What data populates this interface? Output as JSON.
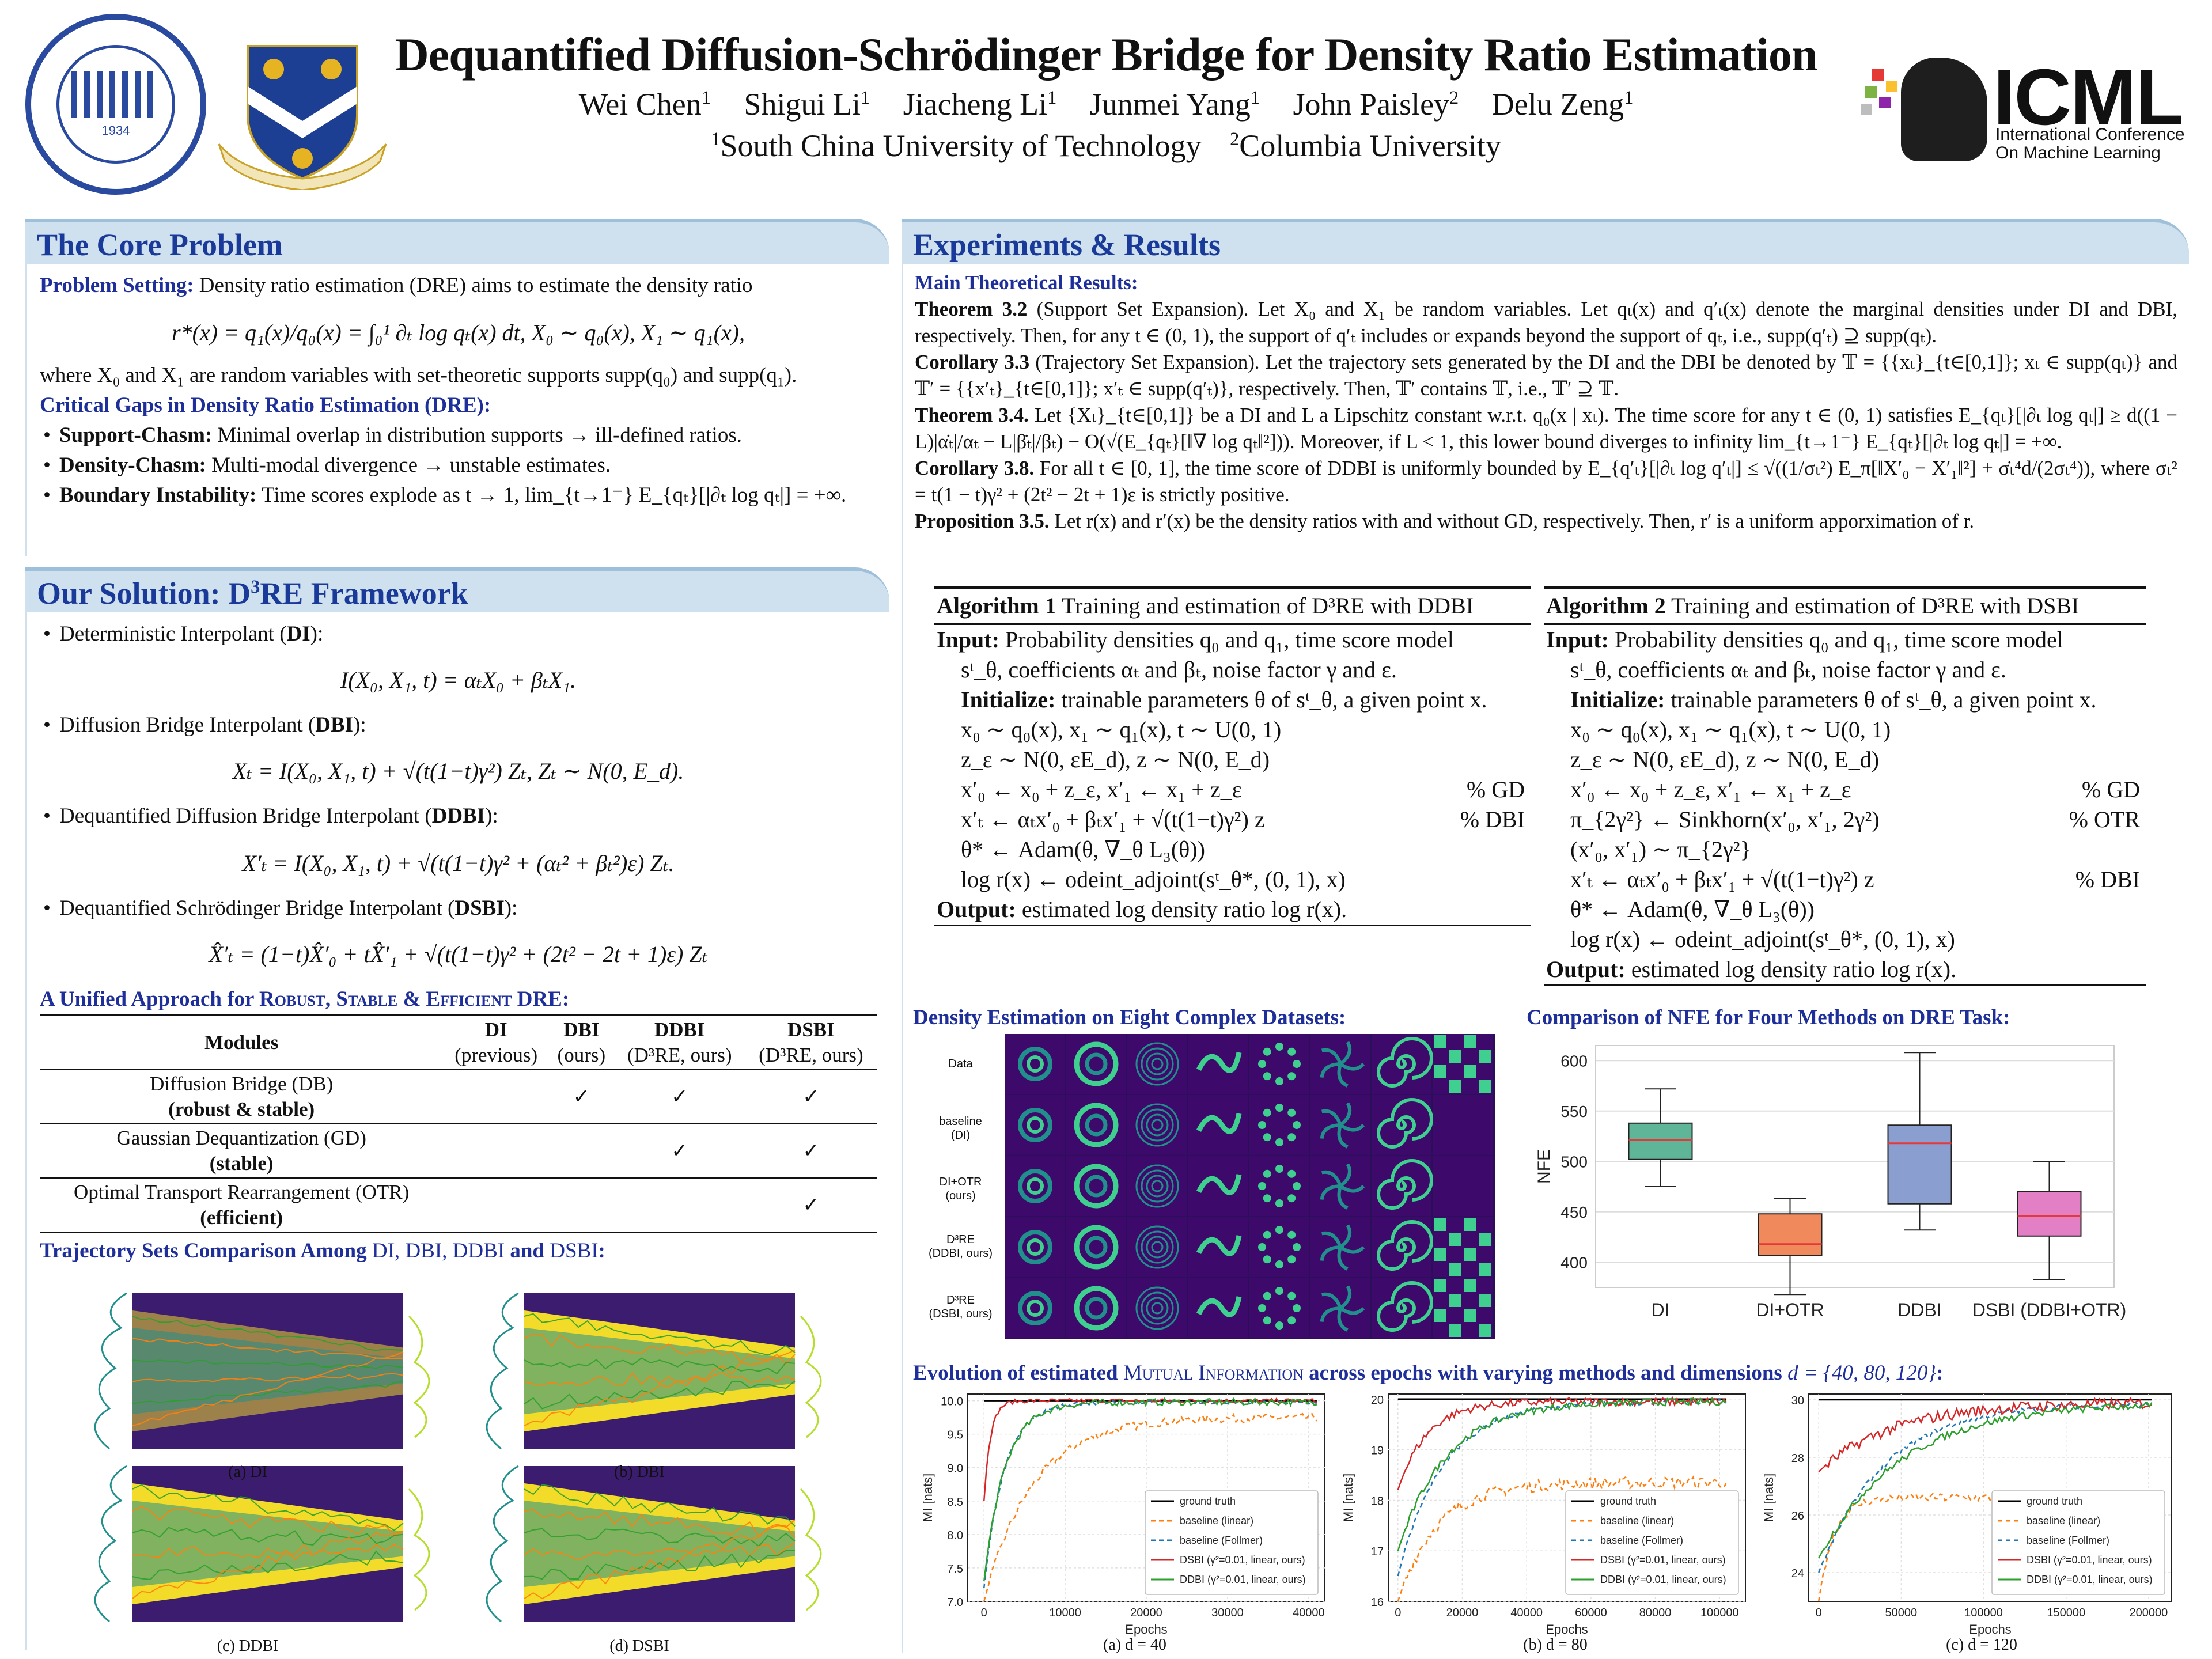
{
  "header": {
    "title": "Dequantified Diffusion-Schrödinger Bridge for Density Ratio Estimation",
    "authors": [
      {
        "name": "Wei Chen",
        "sup": "1"
      },
      {
        "name": "Shigui Li",
        "sup": "1"
      },
      {
        "name": "Jiacheng Li",
        "sup": "1"
      },
      {
        "name": "Junmei Yang",
        "sup": "1"
      },
      {
        "name": "John Paisley",
        "sup": "2"
      },
      {
        "name": "Delu Zeng",
        "sup": "1"
      }
    ],
    "affiliations": [
      {
        "sup": "1",
        "name": "South China University of Technology"
      },
      {
        "sup": "2",
        "name": "Columbia University"
      }
    ],
    "scut_logo_text": "SOUTH CHINA UNIVERSITY OF TECHNOLOGY",
    "scut_logo_year": "1934",
    "icml_logo": {
      "main": "ICML",
      "sub1": "International Conference",
      "sub2": "On Machine Learning"
    }
  },
  "core_problem": {
    "heading": "The Core Problem",
    "setting_label": "Problem Setting:",
    "setting_text": "Density ratio estimation (DRE) aims to estimate the density ratio",
    "equation": "r*(x) = q₁(x)/q₀(x) = ∫₀¹ ∂ₜ log qₜ(x) dt,    X₀ ∼ q₀(x), X₁ ∼ q₁(x),",
    "where_text": "where X₀ and X₁ are random variables with set-theoretic supports supp(q₀) and supp(q₁).",
    "gaps_heading": "Critical Gaps in Density Ratio Estimation (DRE):",
    "gaps": [
      {
        "label": "Support-Chasm:",
        "text": "Minimal overlap in distribution supports → ill-defined ratios."
      },
      {
        "label": "Density-Chasm:",
        "text": "Multi-modal divergence → unstable estimates."
      },
      {
        "label": "Boundary Instability:",
        "text": "Time scores explode as t → 1, lim_{t→1⁻} E_{qₜ}[|∂ₜ log qₜ|] = +∞."
      }
    ]
  },
  "solution": {
    "heading_pre": "Our Solution: D",
    "heading_sup": "3",
    "heading_post": "RE Framework",
    "interpolants": [
      {
        "label_pre": "Deterministic Interpolant (",
        "abbr": "DI",
        "label_post": "):",
        "eq": "I(X₀, X₁, t) = αₜX₀ + βₜX₁."
      },
      {
        "label_pre": "Diffusion Bridge Interpolant (",
        "abbr": "DBI",
        "label_post": "):",
        "eq": "Xₜ = I(X₀, X₁, t) + √(t(1−t)γ²) Zₜ,  Zₜ ∼ N(0, E_d)."
      },
      {
        "label_pre": "Dequantified Diffusion Bridge Interpolant (",
        "abbr": "DDBI",
        "label_post": "):",
        "eq": "X′ₜ = I(X₀, X₁, t) + √(t(1−t)γ² + (αₜ² + βₜ²)ε) Zₜ."
      },
      {
        "label_pre": "Dequantified Schrödinger Bridge Interpolant (",
        "abbr": "DSBI",
        "label_post": "):",
        "eq": "X̂′ₜ = (1−t)X̂′₀ + tX̂′₁ + √(t(1−t)γ² + (2t² − 2t + 1)ε) Zₜ"
      }
    ],
    "unified_pre": "A Unified Approach for",
    "unified_words": [
      "Robust",
      "Stable",
      "Efficient"
    ],
    "unified_post": "DRE:",
    "table": {
      "headers": [
        {
          "top": "Modules",
          "bottom": ""
        },
        {
          "top": "DI",
          "bottom": "(previous)"
        },
        {
          "top": "DBI",
          "bottom": "(ours)"
        },
        {
          "top": "DDBI",
          "bottom": "(D³RE, ours)"
        },
        {
          "top": "DSBI",
          "bottom": "(D³RE, ours)"
        }
      ],
      "rows": [
        {
          "name": "Diffusion Bridge (DB)",
          "note": "(robust & stable)",
          "checks": [
            "",
            "✓",
            "✓",
            "✓"
          ]
        },
        {
          "name": "Gaussian Dequantization (GD)",
          "note": "(stable)",
          "checks": [
            "",
            "",
            "✓",
            "✓"
          ]
        },
        {
          "name": "Optimal Transport Rearrangement (OTR)",
          "note": "(efficient)",
          "checks": [
            "",
            "",
            "",
            "✓"
          ]
        }
      ]
    },
    "trajectory_heading_pre": "Trajectory Sets Comparison Among",
    "trajectory_methods": "DI, DBI, DDBI",
    "trajectory_and": "and",
    "trajectory_last": "DSBI",
    "trajectory_colon": ":",
    "trajectory_captions": [
      "(a) DI",
      "(b) DBI",
      "(c) DDBI",
      "(d) DSBI"
    ]
  },
  "experiments": {
    "heading": "Experiments & Results",
    "main_results_heading": "Main Theoretical Results:",
    "theorems": [
      {
        "label": "Theorem 3.2",
        "text": "(Support Set Expansion). Let X₀ and X₁ be random variables. Let qₜ(x) and q′ₜ(x) denote the marginal densities under DI and DBI, respectively. Then, for any t ∈ (0, 1), the support of q′ₜ includes or expands beyond the support of qₜ, i.e., supp(q′ₜ) ⊇ supp(qₜ)."
      },
      {
        "label": "Corollary 3.3",
        "text": "(Trajectory Set Expansion). Let the trajectory sets generated by the DI and the DBI be denoted by 𝕋 = {{xₜ}_{t∈[0,1]}; xₜ ∈ supp(qₜ)} and 𝕋′ = {{x′ₜ}_{t∈[0,1]}; x′ₜ ∈ supp(q′ₜ)}, respectively. Then, 𝕋′ contains 𝕋, i.e., 𝕋′ ⊇ 𝕋."
      },
      {
        "label": "Theorem 3.4.",
        "text": "Let {Xₜ}_{t∈[0,1]} be a DI and L a Lipschitz constant w.r.t. q₀(x | xₜ). The time score for any t ∈ (0, 1) satisfies E_{qₜ}[|∂ₜ log qₜ|] ≥ d((1 − L)|α̇ₜ|/αₜ − L|β̇ₜ|/βₜ) − O(√(E_{qₜ}[‖∇ log qₜ‖²])). Moreover, if L < 1, this lower bound diverges to infinity lim_{t→1⁻} E_{qₜ}[|∂ₜ log qₜ|] = +∞."
      },
      {
        "label": "Corollary 3.8.",
        "text": "For all t ∈ [0, 1], the time score of DDBI is uniformly bounded by E_{q′ₜ}[|∂ₜ log q′ₜ|] ≤ √((1/σₜ²) E_π[‖X′₀ − X′₁‖²] + σ̇ₜ⁴d/(2σₜ⁴)), where σₜ² = t(1 − t)γ² + (2t² − 2t + 1)ε is strictly positive."
      },
      {
        "label": "Proposition 3.5.",
        "text": "Let r(x) and r′(x) be the density ratios with and without GD, respectively. Then, r′ is a uniform apporximation of r."
      }
    ],
    "algorithm1": {
      "title_pre": "Algorithm 1",
      "title": "Training and estimation of D³RE with DDBI",
      "input_label": "Input:",
      "input_text": "Probability densities q₀ and q₁, time score model",
      "input_text2": "sᵗ_θ, coefficients αₜ and βₜ, noise factor γ and ε.",
      "init_label": "Initialize:",
      "init_text": "trainable parameters θ of sᵗ_θ, a given point x.",
      "lines": [
        {
          "code": "x₀ ∼ q₀(x), x₁ ∼ q₁(x), t ∼ U(0, 1)",
          "comment": ""
        },
        {
          "code": "z_ε ∼ N(0, εE_d), z ∼ N(0, E_d)",
          "comment": ""
        },
        {
          "code": "x′₀ ← x₀ + z_ε, x′₁ ← x₁ + z_ε",
          "comment": "% GD"
        },
        {
          "code": "x′ₜ ← αₜx′₀ + βₜx′₁ + √(t(1−t)γ²) z",
          "comment": "% DBI"
        },
        {
          "code": "θ* ← Adam(θ, ∇_θ L₃(θ))",
          "comment": ""
        },
        {
          "code": "log r(x) ← odeint_adjoint(sᵗ_θ*, (0, 1), x)",
          "comment": ""
        }
      ],
      "output_label": "Output:",
      "output_text": "estimated log density ratio log r(x)."
    },
    "algorithm2": {
      "title_pre": "Algorithm 2",
      "title": "Training and estimation of D³RE with DSBI",
      "input_label": "Input:",
      "input_text": "Probability densities q₀ and q₁, time score model",
      "input_text2": "sᵗ_θ, coefficients αₜ and βₜ, noise factor γ and ε.",
      "init_label": "Initialize:",
      "init_text": "trainable parameters θ of sᵗ_θ, a given point x.",
      "lines": [
        {
          "code": "x₀ ∼ q₀(x), x₁ ∼ q₁(x), t ∼ U(0, 1)",
          "comment": ""
        },
        {
          "code": "z_ε ∼ N(0, εE_d), z ∼ N(0, E_d)",
          "comment": ""
        },
        {
          "code": "x′₀ ← x₀ + z_ε, x′₁ ← x₁ + z_ε",
          "comment": "% GD"
        },
        {
          "code": "π_{2γ²} ← Sinkhorn(x′₀, x′₁, 2γ²)",
          "comment": "% OTR"
        },
        {
          "code": "(x′₀, x′₁) ∼ π_{2γ²}",
          "comment": ""
        },
        {
          "code": "x′ₜ ← αₜx′₀ + βₜx′₁ + √(t(1−t)γ²) z",
          "comment": "% DBI"
        },
        {
          "code": "θ* ← Adam(θ, ∇_θ L₃(θ))",
          "comment": ""
        },
        {
          "code": "log r(x) ← odeint_adjoint(sᵗ_θ*, (0, 1), x)",
          "comment": ""
        }
      ],
      "output_label": "Output:",
      "output_text": "estimated log density ratio log r(x)."
    },
    "density_title": "Density Estimation on Eight Complex Datasets:",
    "density_rows": [
      {
        "l1": "Data",
        "l2": ""
      },
      {
        "l1": "baseline",
        "l2": "(DI)"
      },
      {
        "l1": "DI+OTR",
        "l2": "(ours)"
      },
      {
        "l1": "D³RE",
        "l2": "(DDBI, ours)"
      },
      {
        "l1": "D³RE",
        "l2": "(DSBI, ours)"
      }
    ],
    "nfe_title": "Comparison of NFE for Four Methods on DRE Task:",
    "mi_title_pre": "Evolution of estimated",
    "mi_title_sc": "Mutual Information",
    "mi_title_mid": "across epochs with varying methods and dimensions",
    "mi_title_dims": "d = {40, 80, 120}",
    "mi_title_end": ":",
    "mi_captions": [
      "(a) d = 40",
      "(b) d = 80",
      "(c) d = 120"
    ]
  },
  "chart_data": [
    {
      "type": "box",
      "ylabel": "NFE",
      "categories": [
        "DI",
        "DI+OTR",
        "DDBI",
        "DSBI (DDBI+OTR)"
      ],
      "colors": [
        "#5fb597",
        "#f08a5d",
        "#8a9fd0",
        "#e37fc4"
      ],
      "median_color": "#e5383b",
      "ylim": [
        375,
        615
      ],
      "yticks": [
        400,
        450,
        500,
        550,
        600
      ],
      "boxes": [
        {
          "min": 475,
          "q1": 502,
          "median": 521,
          "q3": 538,
          "max": 572
        },
        {
          "min": 368,
          "q1": 407,
          "median": 418,
          "q3": 448,
          "max": 463
        },
        {
          "min": 432,
          "q1": 458,
          "median": 518,
          "q3": 536,
          "max": 608
        },
        {
          "min": 383,
          "q1": 426,
          "median": 446,
          "q3": 470,
          "max": 500
        }
      ],
      "grid": true
    },
    {
      "type": "line",
      "xlabel": "Epochs",
      "ylabel": "MI [nats]",
      "xlim": [
        -2000,
        42000
      ],
      "ylim": [
        7.0,
        10.1
      ],
      "xticks": [
        0,
        10000,
        20000,
        30000,
        40000
      ],
      "yticks": [
        7.0,
        7.5,
        8.0,
        8.5,
        9.0,
        9.5,
        10.0
      ],
      "legend": "bottom-right",
      "ground_truth": 10.0,
      "series": [
        {
          "name": "ground truth",
          "color": "#000000",
          "dash": "",
          "start": 10.0,
          "plateau": 10.0,
          "rate": 1,
          "noise": 0
        },
        {
          "name": "baseline (linear)",
          "color": "#ff7f0e",
          "dash": "8,6",
          "start": 7.0,
          "plateau": 9.75,
          "rate": 6000,
          "noise": 0.06
        },
        {
          "name": "baseline (Follmer)",
          "color": "#1f77b4",
          "dash": "8,6",
          "start": 7.2,
          "plateau": 9.98,
          "rate": 2500,
          "noise": 0.03
        },
        {
          "name": "DSBI (γ²=0.01, linear, ours)",
          "color": "#d62728",
          "dash": "",
          "start": 8.5,
          "plateau": 10.0,
          "rate": 800,
          "noise": 0.03
        },
        {
          "name": "DDBI (γ²=0.01, linear, ours)",
          "color": "#2ca02c",
          "dash": "",
          "start": 7.3,
          "plateau": 9.98,
          "rate": 2600,
          "noise": 0.05
        }
      ],
      "xmax": 41000
    },
    {
      "type": "line",
      "xlabel": "Epochs",
      "ylabel": "MI [nats]",
      "xlim": [
        -3000,
        108000
      ],
      "ylim": [
        16.0,
        20.1
      ],
      "xticks": [
        0,
        20000,
        40000,
        60000,
        80000,
        100000
      ],
      "yticks": [
        16,
        17,
        18,
        19,
        20
      ],
      "legend": "bottom-right",
      "ground_truth": 20.0,
      "series": [
        {
          "name": "ground truth",
          "color": "#000000",
          "dash": "",
          "start": 20.0,
          "plateau": 20.0,
          "rate": 1,
          "noise": 0
        },
        {
          "name": "baseline (linear)",
          "color": "#ff7f0e",
          "dash": "8,6",
          "start": 16.0,
          "plateau": 18.35,
          "rate": 12000,
          "noise": 0.12
        },
        {
          "name": "baseline (Follmer)",
          "color": "#1f77b4",
          "dash": "8,6",
          "start": 16.5,
          "plateau": 19.95,
          "rate": 14000,
          "noise": 0.05
        },
        {
          "name": "DSBI (γ²=0.01, linear, ours)",
          "color": "#d62728",
          "dash": "",
          "start": 18.2,
          "plateau": 19.95,
          "rate": 9000,
          "noise": 0.08
        },
        {
          "name": "DDBI (γ²=0.01, linear, ours)",
          "color": "#2ca02c",
          "dash": "",
          "start": 17.0,
          "plateau": 19.95,
          "rate": 15000,
          "noise": 0.07
        }
      ],
      "xmax": 102000
    },
    {
      "type": "line",
      "xlabel": "Epochs",
      "ylabel": "MI [nats]",
      "xlim": [
        -6000,
        214000
      ],
      "ylim": [
        23.0,
        30.2
      ],
      "xticks": [
        0,
        50000,
        100000,
        150000,
        200000
      ],
      "yticks": [
        24,
        26,
        28,
        30
      ],
      "legend": "bottom-right",
      "ground_truth": 30.0,
      "series": [
        {
          "name": "ground truth",
          "color": "#000000",
          "dash": "",
          "start": 30.0,
          "plateau": 30.0,
          "rate": 1,
          "noise": 0
        },
        {
          "name": "baseline (linear)",
          "color": "#ff7f0e",
          "dash": "8,6",
          "start": 23.0,
          "plateau": 26.6,
          "rate": 9000,
          "noise": 0.15
        },
        {
          "name": "baseline (Follmer)",
          "color": "#1f77b4",
          "dash": "8,6",
          "start": 24.0,
          "plateau": 29.9,
          "rate": 40000,
          "noise": 0.1
        },
        {
          "name": "DSBI (γ²=0.01, linear, ours)",
          "color": "#d62728",
          "dash": "",
          "start": 27.5,
          "plateau": 29.9,
          "rate": 45000,
          "noise": 0.2
        },
        {
          "name": "DDBI (γ²=0.01, linear, ours)",
          "color": "#2ca02c",
          "dash": "",
          "start": 24.5,
          "plateau": 29.9,
          "rate": 50000,
          "noise": 0.12
        }
      ],
      "xmax": 202000
    }
  ]
}
